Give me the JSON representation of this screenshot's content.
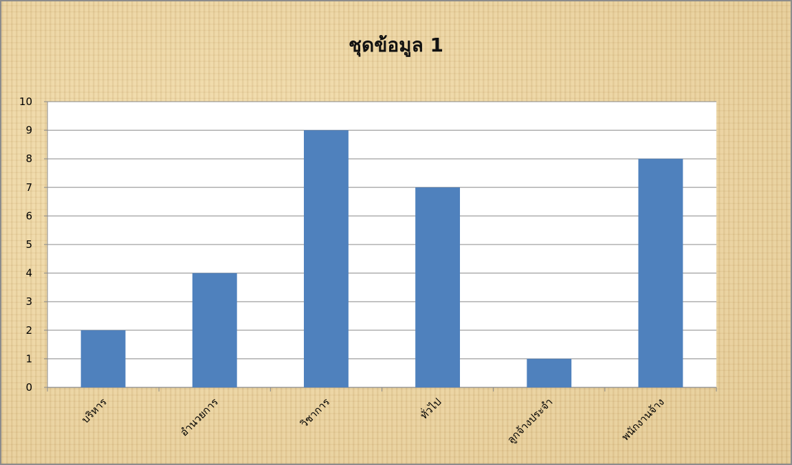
{
  "chart_data": {
    "type": "bar",
    "title": "ชุดข้อมูล 1",
    "categories": [
      "บริหาร",
      "อำนวยการ",
      "วิชาการ",
      "ทั่วไป",
      "ลูกจ้างประจำ",
      "พนักงานจ้าง"
    ],
    "values": [
      2,
      4,
      9,
      7,
      1,
      8
    ],
    "y_ticks": [
      "0",
      "1",
      "2",
      "3",
      "4",
      "5",
      "6",
      "7",
      "8",
      "9",
      "10"
    ],
    "ylim": [
      0,
      10
    ],
    "grid": true,
    "bar_color": "#4f81bd",
    "xlabel": "",
    "ylabel": ""
  }
}
